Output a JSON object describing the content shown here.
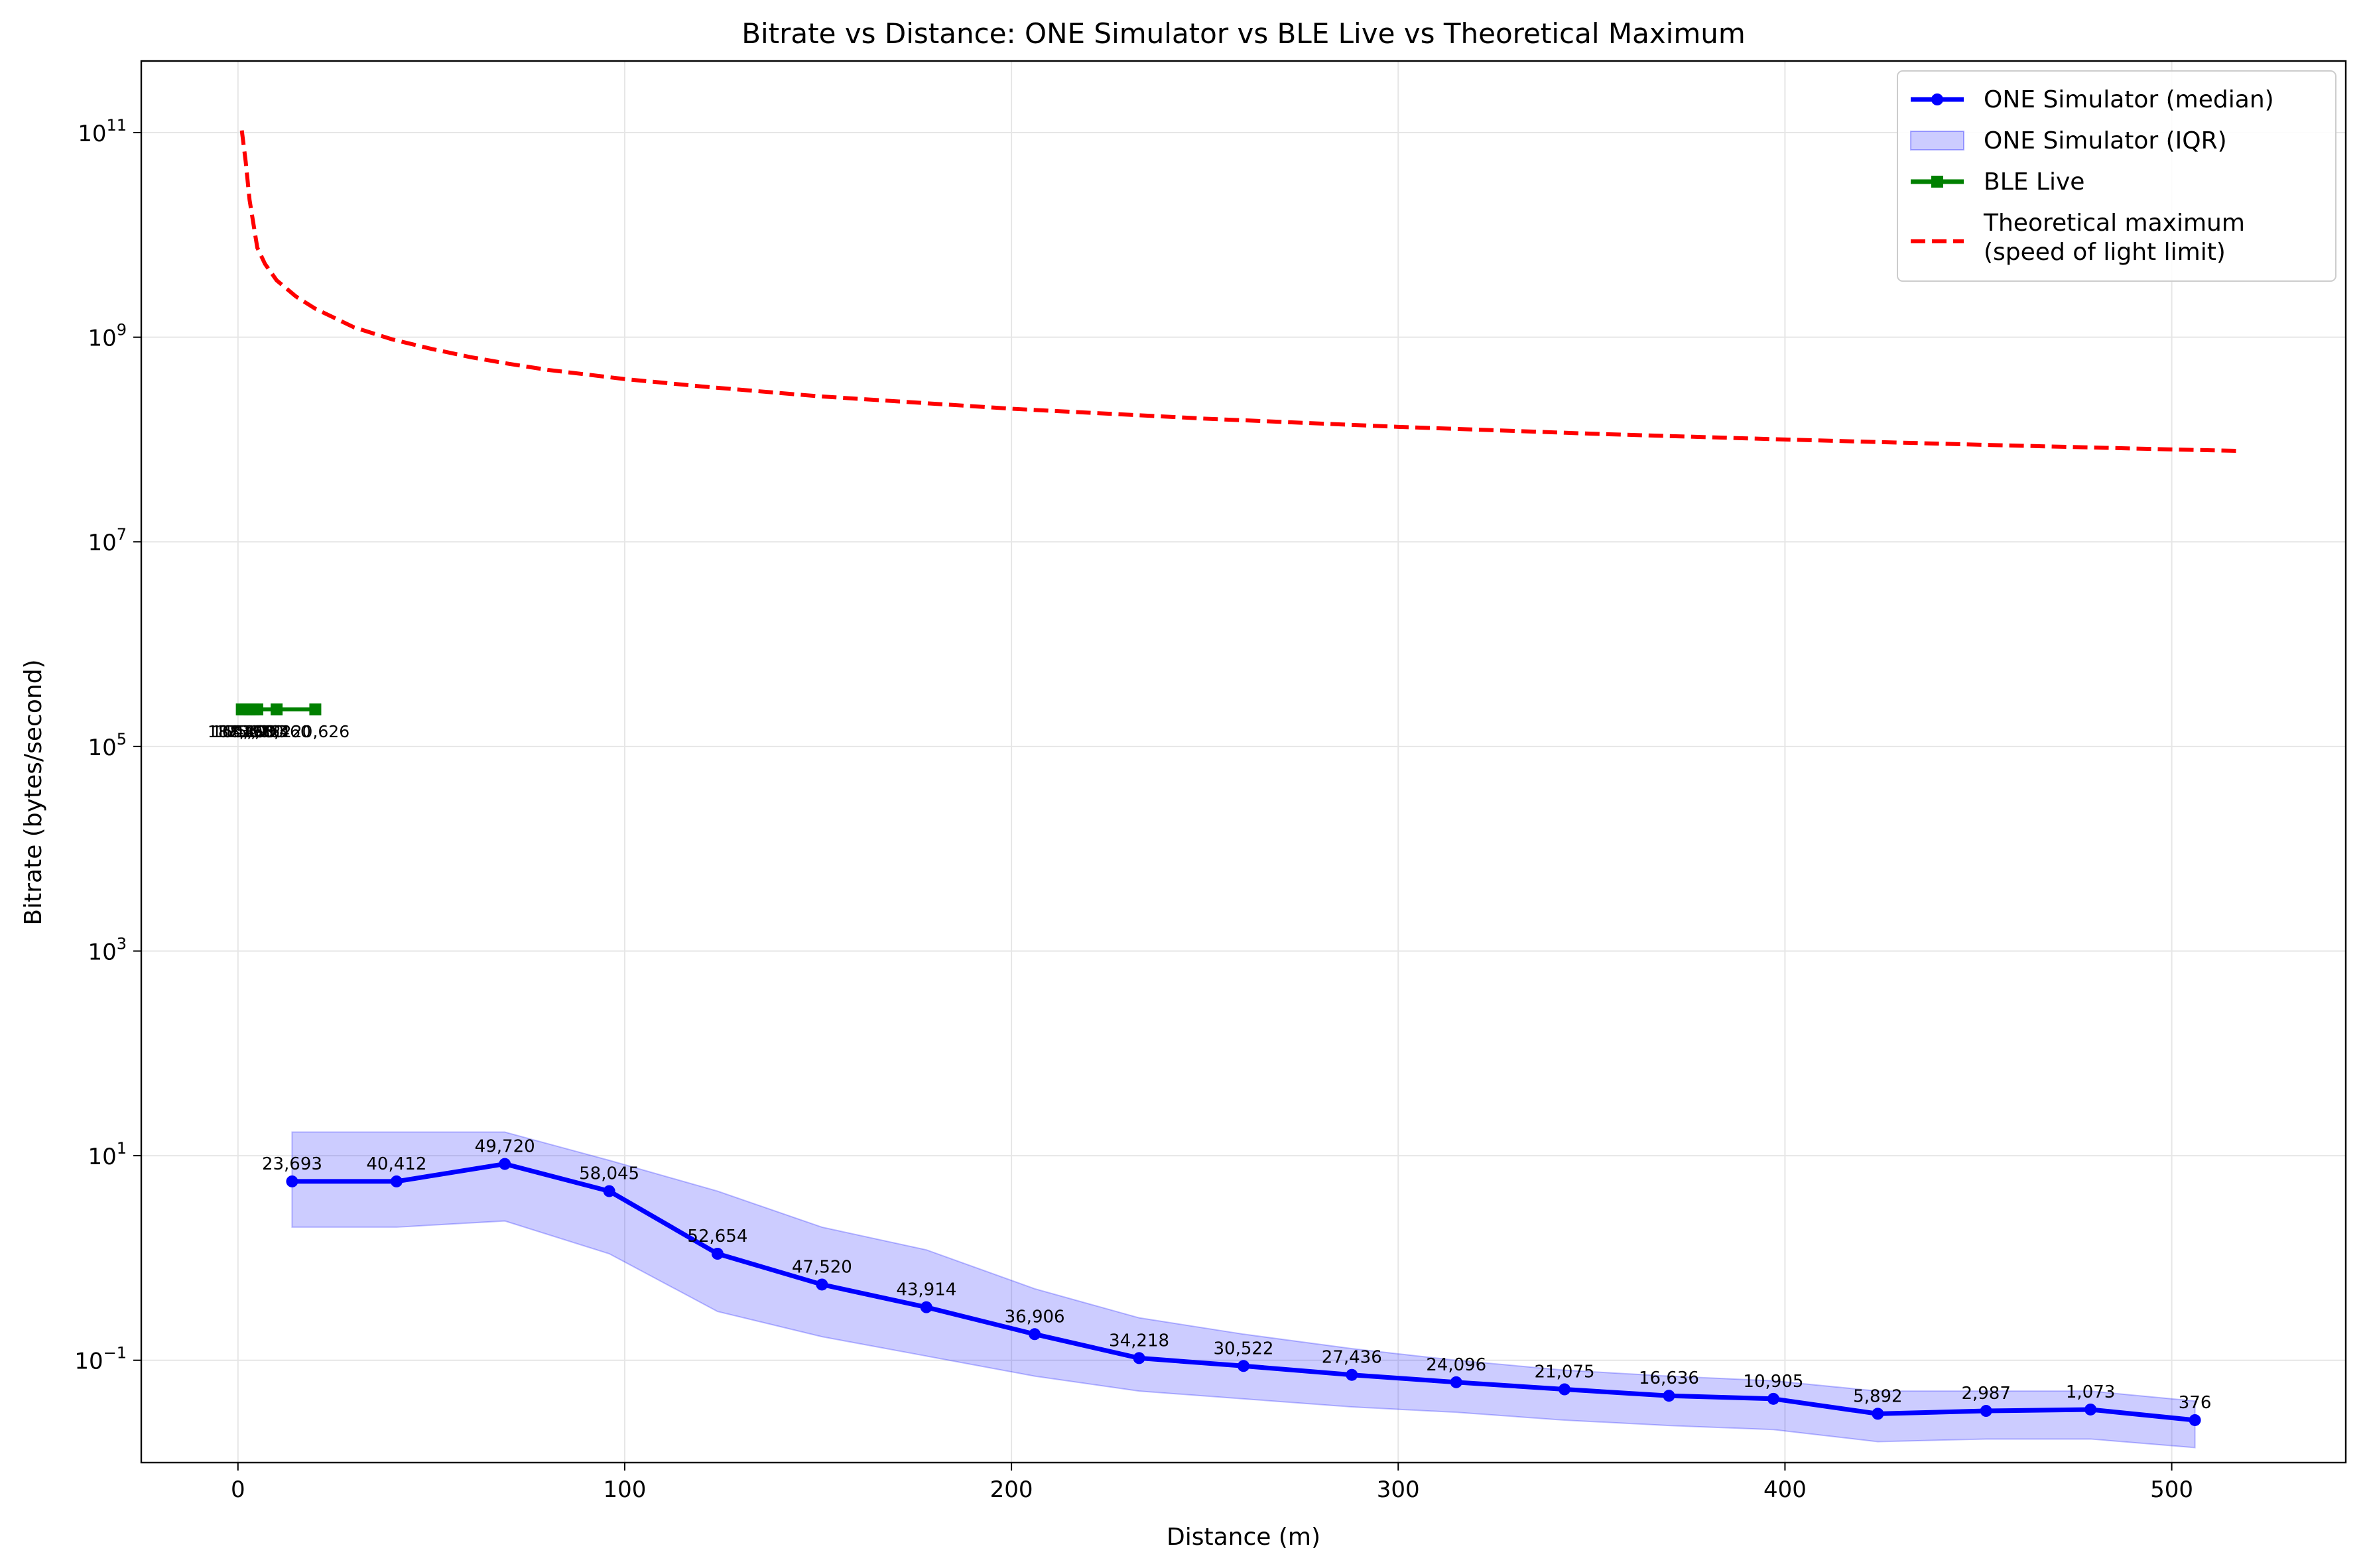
{
  "chart_data": {
    "type": "line",
    "title": "Bitrate vs Distance: ONE Simulator vs BLE Live vs Theoretical Maximum",
    "xlabel": "Distance (m)",
    "ylabel": "Bitrate (bytes/second)",
    "yscale": "log",
    "xlim": [
      -25,
      545
    ],
    "ylim_log10": [
      -2.0,
      11.7
    ],
    "xticks": [
      0,
      100,
      200,
      300,
      400,
      500
    ],
    "xtick_labels": [
      "0",
      "100",
      "200",
      "300",
      "400",
      "500"
    ],
    "yticks": [
      0.1,
      10.0,
      1000.0,
      100000.0,
      10000000.0,
      1000000000.0,
      100000000000.0
    ],
    "ytick_labels": [
      {
        "base": "10",
        "exp": "−1"
      },
      {
        "base": "10",
        "exp": "1"
      },
      {
        "base": "10",
        "exp": "3"
      },
      {
        "base": "10",
        "exp": "5"
      },
      {
        "base": "10",
        "exp": "7"
      },
      {
        "base": "10",
        "exp": "9"
      },
      {
        "base": "10",
        "exp": "11"
      }
    ],
    "grid": true,
    "legend_position": "top-right",
    "legend": [
      {
        "label": "ONE Simulator (median)",
        "style": "line-marker",
        "color": "#0000ff"
      },
      {
        "label": "ONE Simulator (IQR)",
        "style": "patch",
        "color": "#0000ff"
      },
      {
        "label": "BLE Live",
        "style": "line-square",
        "color": "#008000"
      },
      {
        "label": "Theoretical maximum",
        "label2": "(speed of light limit)",
        "style": "dashed",
        "color": "#ff0000"
      }
    ],
    "series": [
      {
        "name": "ONE Simulator (median)",
        "color": "#0000ff",
        "x": [
          14,
          41,
          69,
          96,
          124,
          151,
          178,
          206,
          233,
          260,
          288,
          315,
          343,
          370,
          397,
          424,
          452,
          479,
          506
        ],
        "y": [
          5.6,
          5.6,
          8.3,
          4.5,
          1.1,
          0.55,
          0.33,
          0.18,
          0.105,
          0.088,
          0.072,
          0.061,
          0.052,
          0.045,
          0.042,
          0.03,
          0.032,
          0.033,
          0.026
        ],
        "point_labels": [
          "23,693",
          "40,412",
          "49,720",
          "58,045",
          "52,654",
          "47,520",
          "43,914",
          "36,906",
          "34,218",
          "30,522",
          "27,436",
          "24,096",
          "21,075",
          "16,636",
          "10,905",
          "5,892",
          "2,987",
          "1,073",
          "376"
        ]
      },
      {
        "name": "ONE Simulator (IQR)",
        "color": "#0000ff",
        "x": [
          14,
          41,
          69,
          96,
          124,
          151,
          178,
          206,
          233,
          260,
          288,
          315,
          343,
          370,
          397,
          424,
          452,
          479,
          506
        ],
        "y_low": [
          2.0,
          2.0,
          2.3,
          1.1,
          0.3,
          0.17,
          0.11,
          0.07,
          0.05,
          0.042,
          0.035,
          0.031,
          0.026,
          0.023,
          0.021,
          0.016,
          0.017,
          0.017,
          0.014
        ],
        "y_high": [
          17,
          17,
          17,
          9,
          4.5,
          2.0,
          1.2,
          0.5,
          0.26,
          0.18,
          0.13,
          0.1,
          0.08,
          0.07,
          0.063,
          0.05,
          0.05,
          0.05,
          0.04
        ]
      },
      {
        "name": "BLE Live",
        "color": "#008000",
        "x": [
          1,
          2,
          3,
          4,
          5,
          10,
          20
        ],
        "y": [
          230000,
          230000,
          230000,
          230000,
          230000,
          230000,
          230000
        ],
        "point_labels": [
          "187,400",
          "160,626",
          "175,980",
          "183,913",
          "148,322",
          "166,460",
          "120,626"
        ]
      },
      {
        "name": "Theoretical maximum",
        "color": "#ff0000",
        "x": [
          1,
          2,
          3,
          5,
          7,
          10,
          15,
          20,
          30,
          40,
          50,
          60,
          70,
          80,
          100,
          120,
          150,
          200,
          250,
          300,
          350,
          400,
          450,
          500,
          517
        ],
        "y": [
          105000000000.0,
          52000000000.0,
          22000000000.0,
          7500000000.0,
          5200000000.0,
          3600000000.0,
          2500000000.0,
          1900000000.0,
          1250000000.0,
          950000000.0,
          770000000.0,
          640000000.0,
          550000000.0,
          480000000.0,
          390000000.0,
          330000000.0,
          265000000.0,
          200000000.0,
          160000000.0,
          133000000.0,
          114000000.0,
          100000000.0,
          89000000.0,
          80000000.0,
          77500000.0
        ]
      }
    ]
  }
}
